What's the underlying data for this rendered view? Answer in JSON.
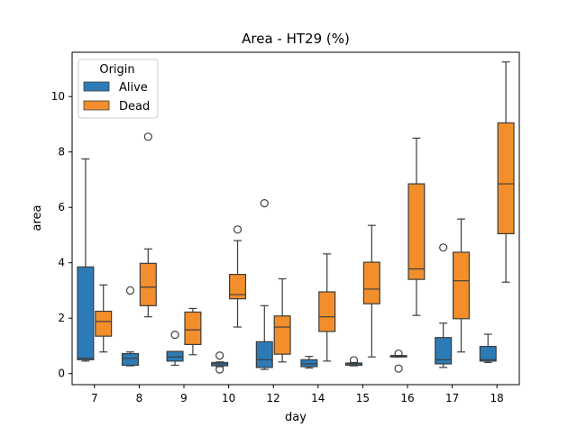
{
  "chart_data": {
    "type": "box",
    "title": "Area - HT29 (%)",
    "xlabel": "day",
    "ylabel": "area",
    "ylim": [
      -0.4,
      11.6
    ],
    "yticks": [
      0,
      2,
      4,
      6,
      8,
      10
    ],
    "categories": [
      "7",
      "8",
      "9",
      "10",
      "12",
      "14",
      "15",
      "16",
      "17",
      "18"
    ],
    "legend": {
      "title": "Origin",
      "position": "top-left"
    },
    "series": [
      {
        "name": "Alive",
        "color": "#2c7bb6",
        "boxes": [
          {
            "whislo": 0.45,
            "q1": 0.5,
            "med": 0.55,
            "q3": 3.85,
            "whishi": 7.75,
            "fliers": []
          },
          {
            "whislo": 0.28,
            "q1": 0.3,
            "med": 0.55,
            "q3": 0.72,
            "whishi": 0.78,
            "fliers": [
              3.0
            ]
          },
          {
            "whislo": 0.3,
            "q1": 0.45,
            "med": 0.6,
            "q3": 0.8,
            "whishi": 0.8,
            "fliers": [
              1.4
            ]
          },
          {
            "whislo": 0.25,
            "q1": 0.28,
            "med": 0.35,
            "q3": 0.4,
            "whishi": 0.42,
            "fliers": [
              0.65,
              0.15
            ]
          },
          {
            "whislo": 0.15,
            "q1": 0.22,
            "med": 0.5,
            "q3": 1.15,
            "whishi": 2.45,
            "fliers": [
              6.15
            ]
          },
          {
            "whislo": 0.2,
            "q1": 0.25,
            "med": 0.35,
            "q3": 0.5,
            "whishi": 0.62,
            "fliers": []
          },
          {
            "whislo": 0.28,
            "q1": 0.3,
            "med": 0.35,
            "q3": 0.38,
            "whishi": 0.4,
            "fliers": [
              0.48
            ]
          },
          {
            "whislo": 0.6,
            "q1": 0.6,
            "med": 0.62,
            "q3": 0.65,
            "whishi": 0.65,
            "fliers": [
              0.72,
              0.18
            ]
          },
          {
            "whislo": 0.22,
            "q1": 0.35,
            "med": 0.5,
            "q3": 1.3,
            "whishi": 1.82,
            "fliers": [
              4.55
            ]
          },
          {
            "whislo": 0.4,
            "q1": 0.45,
            "med": 0.5,
            "q3": 0.98,
            "whishi": 1.42,
            "fliers": []
          }
        ]
      },
      {
        "name": "Dead",
        "color": "#f28e2b",
        "boxes": [
          {
            "whislo": 0.78,
            "q1": 1.35,
            "med": 1.88,
            "q3": 2.25,
            "whishi": 3.2,
            "fliers": []
          },
          {
            "whislo": 2.05,
            "q1": 2.45,
            "med": 3.12,
            "q3": 3.98,
            "whishi": 4.5,
            "fliers": [
              8.55
            ]
          },
          {
            "whislo": 0.68,
            "q1": 1.05,
            "med": 1.58,
            "q3": 2.22,
            "whishi": 2.35,
            "fliers": []
          },
          {
            "whislo": 1.68,
            "q1": 2.7,
            "med": 2.85,
            "q3": 3.58,
            "whishi": 4.8,
            "fliers": [
              5.2
            ]
          },
          {
            "whislo": 0.42,
            "q1": 0.7,
            "med": 1.68,
            "q3": 2.08,
            "whishi": 3.42,
            "fliers": []
          },
          {
            "whislo": 0.45,
            "q1": 1.52,
            "med": 2.05,
            "q3": 2.95,
            "whishi": 4.32,
            "fliers": []
          },
          {
            "whislo": 0.6,
            "q1": 2.52,
            "med": 3.05,
            "q3": 4.02,
            "whishi": 5.35,
            "fliers": []
          },
          {
            "whislo": 2.1,
            "q1": 3.4,
            "med": 3.78,
            "q3": 6.85,
            "whishi": 8.5,
            "fliers": []
          },
          {
            "whislo": 0.78,
            "q1": 1.98,
            "med": 3.35,
            "q3": 4.38,
            "whishi": 5.58,
            "fliers": []
          },
          {
            "whislo": 3.3,
            "q1": 5.05,
            "med": 6.85,
            "q3": 9.05,
            "whishi": 11.25,
            "fliers": []
          }
        ]
      }
    ]
  }
}
